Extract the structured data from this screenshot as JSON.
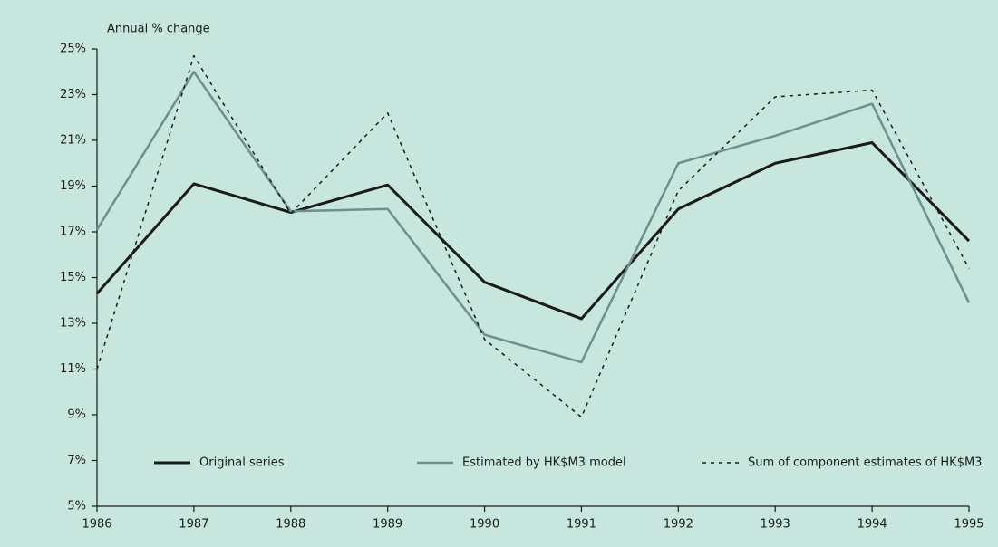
{
  "chart_data": {
    "type": "line",
    "y_axis_label": "Annual % change",
    "categories": [
      "1986",
      "1987",
      "1988",
      "1989",
      "1990",
      "1991",
      "1992",
      "1993",
      "1994",
      "1995"
    ],
    "series": [
      {
        "name": "Original series",
        "color": "#1a1a1a",
        "style": "solid",
        "values": [
          14.3,
          19.1,
          17.85,
          19.05,
          14.8,
          13.2,
          18.0,
          20.0,
          20.9,
          16.6
        ]
      },
      {
        "name": "Estimated by HK$M3 model",
        "color": "#6b918a",
        "style": "solid",
        "values": [
          17.1,
          24.0,
          17.9,
          18.0,
          12.5,
          11.3,
          20.0,
          21.2,
          22.6,
          13.9
        ]
      },
      {
        "name": "Sum of component estimates of HK$M3",
        "color": "#1a1a1a",
        "style": "dashed",
        "values": [
          11.0,
          24.7,
          17.8,
          22.2,
          12.3,
          8.9,
          18.8,
          22.9,
          23.2,
          15.4
        ]
      }
    ],
    "ylim": [
      5,
      25
    ],
    "yticks": [
      {
        "value": 5,
        "label": "5%"
      },
      {
        "value": 7,
        "label": "7%"
      },
      {
        "value": 9,
        "label": "9%"
      },
      {
        "value": 11,
        "label": "11%"
      },
      {
        "value": 13,
        "label": "13%"
      },
      {
        "value": 15,
        "label": "15%"
      },
      {
        "value": 17,
        "label": "17%"
      },
      {
        "value": 19,
        "label": "19%"
      },
      {
        "value": 21,
        "label": "21%"
      },
      {
        "value": 23,
        "label": "23%"
      },
      {
        "value": 25,
        "label": "25%"
      }
    ],
    "grid": false,
    "legend": "bottom"
  }
}
